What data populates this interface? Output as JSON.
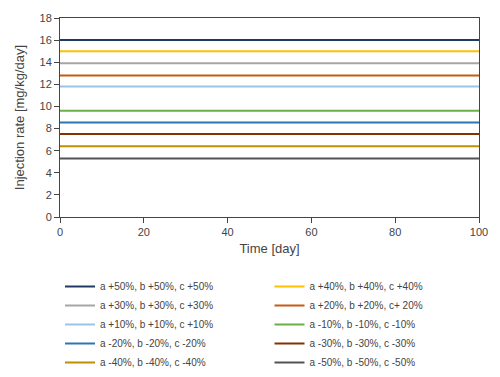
{
  "chart_data": {
    "type": "line",
    "x": [
      0,
      100
    ],
    "series": [
      {
        "name": "a +50%, b +50%, c +50%",
        "color": "#1f3864",
        "values": [
          16.0,
          16.0
        ]
      },
      {
        "name": "a +40%, b +40%, c +40%",
        "color": "#ffc000",
        "values": [
          15.0,
          15.0
        ]
      },
      {
        "name": "a +30%, b +30%, c +30%",
        "color": "#a6a6a6",
        "values": [
          13.9,
          13.9
        ]
      },
      {
        "name": "a +20%, b +20%, c+ 20%",
        "color": "#c55a11",
        "values": [
          12.8,
          12.8
        ]
      },
      {
        "name": "a +10%, b +10%, c +10%",
        "color": "#9dc3e6",
        "values": [
          11.8,
          11.8
        ]
      },
      {
        "name": "a -10%, b -10%, c -10%",
        "color": "#70ad47",
        "values": [
          9.6,
          9.6
        ]
      },
      {
        "name": "a -20%, b -20%, c -20%",
        "color": "#2e75b6",
        "values": [
          8.55,
          8.55
        ]
      },
      {
        "name": "a -30%, b -30%, c -30%",
        "color": "#833200",
        "values": [
          7.5,
          7.5
        ]
      },
      {
        "name": "a -40%, b -40%, c -40%",
        "color": "#bf8f00",
        "values": [
          6.4,
          6.4
        ]
      },
      {
        "name": "a -50%, b -50%, c -50%",
        "color": "#525252",
        "values": [
          5.3,
          5.3
        ]
      }
    ],
    "xlabel": "Time [day]",
    "ylabel": "Injection rate [mg/kg/day]",
    "xlim": [
      0,
      100
    ],
    "ylim": [
      0,
      18
    ],
    "xticks": [
      0,
      20,
      40,
      60,
      80,
      100
    ],
    "yticks": [
      0,
      2,
      4,
      6,
      8,
      10,
      12,
      14,
      16,
      18
    ],
    "grid": false,
    "legend": "bottom"
  }
}
